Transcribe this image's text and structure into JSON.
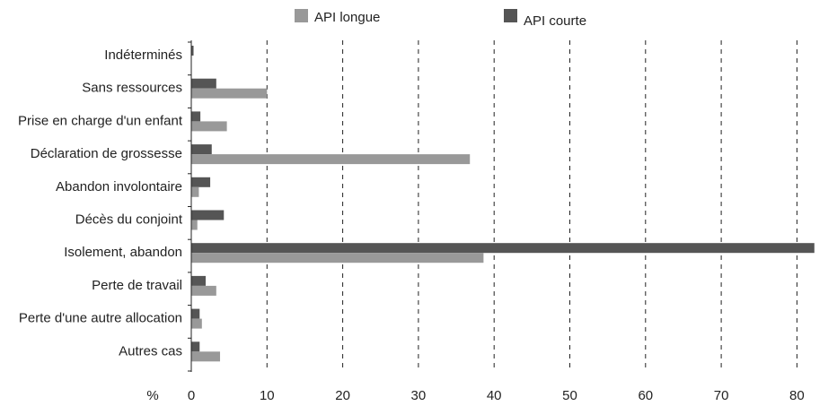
{
  "chart_data": {
    "type": "bar",
    "orientation": "horizontal",
    "categories": [
      "Indéterminés",
      "Sans ressources",
      "Prise en charge d'un enfant",
      "Déclaration de grossesse",
      "Abandon involontaire",
      "Décès du conjoint",
      "Isolement, abandon",
      "Perte de travail",
      "Perte d'une autre allocation",
      "Autres cas"
    ],
    "series": [
      {
        "name": "API longue",
        "color": "#999999",
        "values": [
          0.0,
          10.0,
          4.7,
          36.8,
          1.0,
          0.8,
          38.6,
          3.3,
          1.4,
          3.8
        ]
      },
      {
        "name": "API courte",
        "color": "#555555",
        "values": [
          0.3,
          3.3,
          1.2,
          2.7,
          2.5,
          4.3,
          82.3,
          1.9,
          1.1,
          1.1
        ]
      }
    ],
    "xlim": [
      0,
      85
    ],
    "xticks": [
      0,
      10,
      20,
      30,
      40,
      50,
      60,
      70,
      80
    ],
    "x_unit_label": "%",
    "grid": "vertical-dashed",
    "legend": "top-center"
  }
}
